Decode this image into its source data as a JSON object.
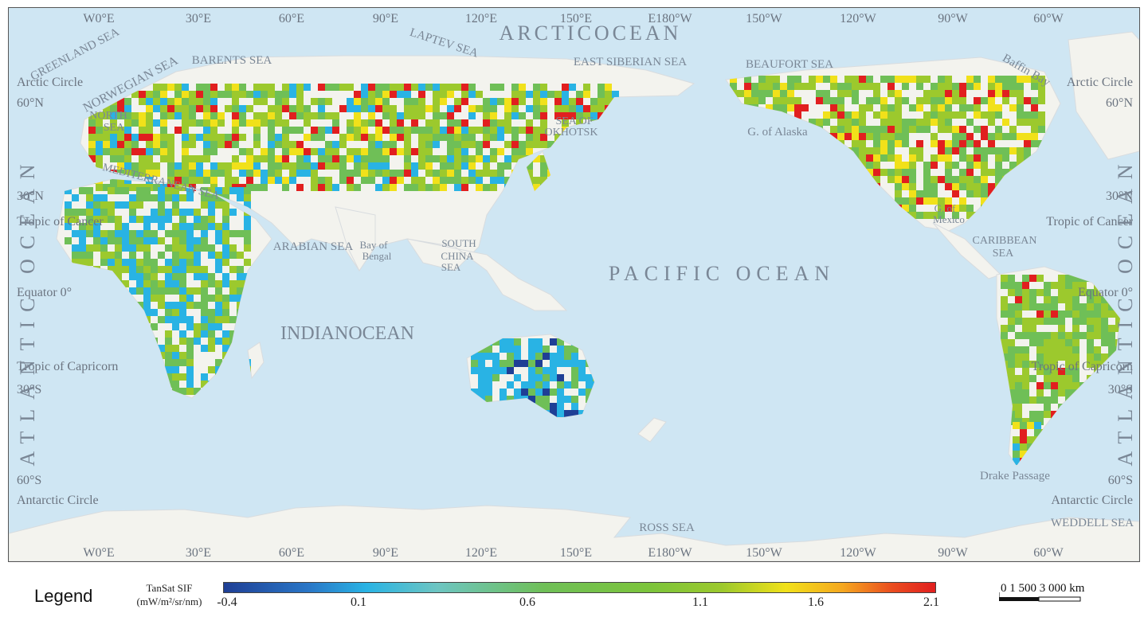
{
  "graticule": {
    "top_lon": [
      "W0°E",
      "30°E",
      "60°E",
      "90°E",
      "120°E",
      "150°E",
      "E180°W",
      "150°W",
      "120°W",
      "90°W",
      "60°W"
    ],
    "bottom_lon": [
      "W0°E",
      "30°E",
      "60°E",
      "90°E",
      "120°E",
      "150°E",
      "E180°W",
      "150°W",
      "120°W",
      "90°W",
      "60°W"
    ],
    "left_lat": [
      "Arctic Circle",
      "60°N",
      "30°N",
      "Tropic of Cancer",
      "Equator 0°",
      "Tropic of Capricorn",
      "30°S",
      "60°S",
      "Antarctic Circle"
    ],
    "right_lat": [
      "Arctic Circle",
      "60°N",
      "30°N",
      "Tropic of Cancer",
      "Equator 0°",
      "Tropic of Capricorn",
      "30°S",
      "60°S",
      "Antarctic Circle"
    ]
  },
  "oceans": {
    "arctic": "ARCTICOCEAN",
    "pacific": "PACIFIC   OCEAN",
    "indian": "INDIANOCEAN",
    "atlantic_left": "ATLANTIC OCEAN",
    "atlantic_right": "ATLANTIC OCEAN"
  },
  "seas": {
    "greenland": "GREENLAND SEA",
    "norwegian": "NORWEGIAN  SEA",
    "barents": "BARENTS SEA",
    "laptev": "LAPTEV SEA",
    "east_siberian": "EAST SIBERIAN SEA",
    "beaufort": "BEAUFORT  SEA",
    "baffin": "Baffin Bay",
    "north_sea_1": "NORTH",
    "north_sea_2": "SEA",
    "mediterranean": "MEDITERRANEAN SEA",
    "okhotsk_1": "SEA OF",
    "okhotsk_2": "OKHOTSK",
    "alaska": "G. of Alaska",
    "arabian": "ARABIAN SEA",
    "bengal_1": "Bay of",
    "bengal_2": "Bengal",
    "scs_1": "SOUTH",
    "scs_2": "CHINA",
    "scs_3": "SEA",
    "mexico_1": "G. of",
    "mexico_2": "Mexico",
    "caribbean_1": "CARIBBEAN",
    "caribbean_2": "SEA",
    "drake": "Drake   Passage",
    "ross": "ROSS   SEA",
    "weddell": "WEDDELL  SEA"
  },
  "legend": {
    "title": "Legend",
    "unit_line1": "TanSat SIF",
    "unit_line2": "(mW/m²/sr/nm)",
    "ticks": [
      "-0.4",
      "0.1",
      "0.6",
      "1.1",
      "1.6",
      "2.1"
    ],
    "colors": [
      "#1f3f95",
      "#29b3e4",
      "#6fbf57",
      "#9cc92d",
      "#f1e11a",
      "#e11f1f"
    ]
  },
  "scale": {
    "label": "0    1 500  3 000 km"
  },
  "colors": {
    "ocean": "#cfe6f3",
    "land": "#f3f3ee",
    "label": "#7a8796"
  }
}
